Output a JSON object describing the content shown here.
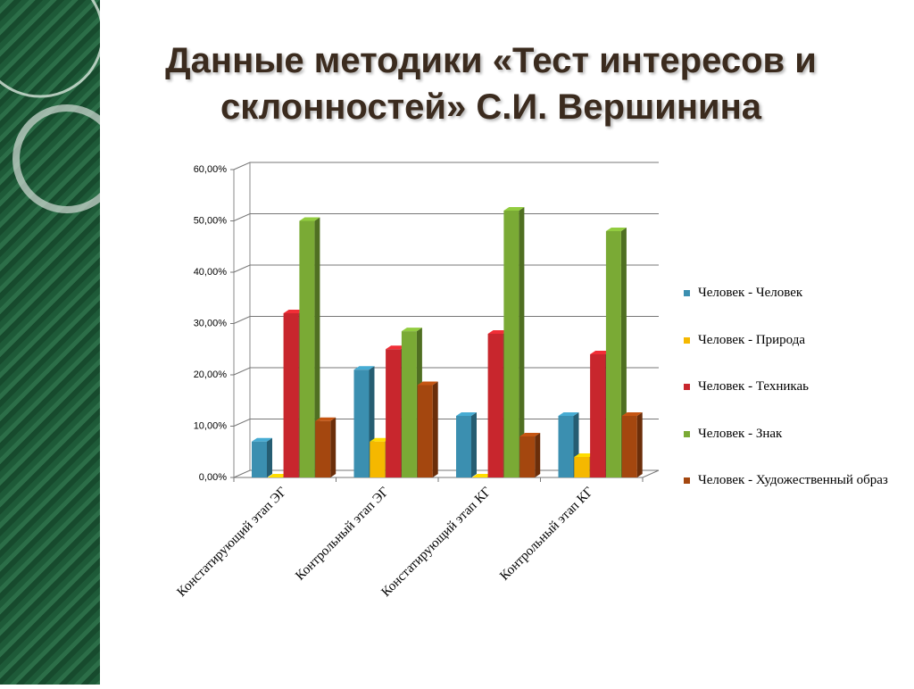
{
  "chart_data": {
    "type": "bar3d",
    "title": "Данные методики «Тест интересов и склонностей» С.И. Вершинина",
    "categories": [
      "Констатирующий этап ЭГ",
      "Контрольный этап ЭГ",
      "Констатирующий этап КГ",
      "Контрольный этап КГ"
    ],
    "series": [
      {
        "name": "Человек - Человек",
        "color": "#3b8fb0",
        "values": [
          7,
          21,
          12,
          12
        ]
      },
      {
        "name": "Человек - Природа",
        "color": "#f5b800",
        "values": [
          0,
          7,
          0,
          4
        ]
      },
      {
        "name": "Человек - Техникаь",
        "color": "#c8262d",
        "values": [
          32,
          25,
          28,
          24
        ]
      },
      {
        "name": "Человек - Знак",
        "color": "#7aaa35",
        "values": [
          50,
          28.5,
          52,
          48
        ]
      },
      {
        "name": "Человек - Художественный образ",
        "color": "#a4470f",
        "values": [
          11,
          18,
          8,
          12
        ]
      }
    ],
    "ylim": [
      0,
      60
    ],
    "yticks": [
      {
        "value": 0,
        "label": "0,00%"
      },
      {
        "value": 10,
        "label": "10,00%"
      },
      {
        "value": 20,
        "label": "20,00%"
      },
      {
        "value": 30,
        "label": "30,00%"
      },
      {
        "value": 40,
        "label": "40,00%"
      },
      {
        "value": 50,
        "label": "50,00%"
      },
      {
        "value": 60,
        "label": "60,00%"
      }
    ],
    "grid": true,
    "legend": "right"
  }
}
